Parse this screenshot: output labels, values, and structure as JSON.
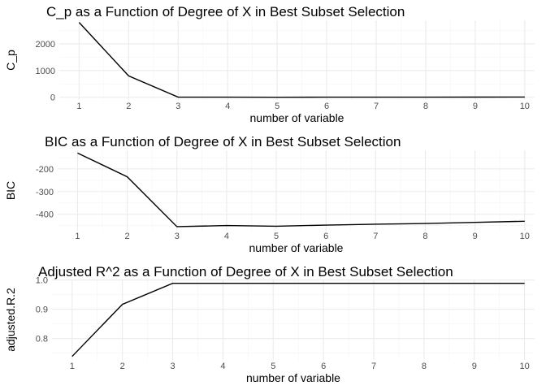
{
  "chart_data": [
    {
      "type": "line",
      "title": "C_p as a Function of Degree of X in Best Subset Selection",
      "xlabel": "number of variable",
      "ylabel": "C_p",
      "x": [
        1,
        2,
        3,
        4,
        5,
        6,
        7,
        8,
        9,
        10
      ],
      "y": [
        2800,
        800,
        5,
        3,
        2,
        3,
        4,
        5,
        6,
        8
      ],
      "xticks": [
        1,
        2,
        3,
        4,
        5,
        6,
        7,
        8,
        9,
        10
      ],
      "yticks": [
        0,
        1000,
        2000
      ],
      "xlim": [
        0.6,
        10.2
      ],
      "ylim": [
        -100,
        2880
      ],
      "grid": true,
      "line_color": "#000000"
    },
    {
      "type": "line",
      "title": "BIC as a Function of Degree of X in Best Subset Selection",
      "xlabel": "number of variable",
      "ylabel": "BIC",
      "x": [
        1,
        2,
        3,
        4,
        5,
        6,
        7,
        8,
        9,
        10
      ],
      "y": [
        -130,
        -235,
        -455,
        -450,
        -453,
        -448,
        -444,
        -441,
        -436,
        -431
      ],
      "xticks": [
        1,
        2,
        3,
        4,
        5,
        6,
        7,
        8,
        9,
        10
      ],
      "yticks": [
        -400,
        -300,
        -200
      ],
      "xlim": [
        0.6,
        10.2
      ],
      "ylim": [
        -473,
        -118
      ],
      "grid": true,
      "line_color": "#000000"
    },
    {
      "type": "line",
      "title": "Adjusted R^2 as a Function of Degree of X in Best Subset Selection",
      "xlabel": "number of variable",
      "ylabel": "adjusted.R.2",
      "x": [
        1,
        2,
        3,
        4,
        5,
        6,
        7,
        8,
        9,
        10
      ],
      "y": [
        0.739,
        0.917,
        0.989,
        0.989,
        0.989,
        0.989,
        0.989,
        0.989,
        0.989,
        0.989
      ],
      "xticks": [
        1,
        2,
        3,
        4,
        5,
        6,
        7,
        8,
        9,
        10
      ],
      "yticks": [
        0.8,
        0.9,
        1.0
      ],
      "ytick_labels": [
        "0.8",
        "0.9",
        "1.0"
      ],
      "xlim": [
        0.6,
        10.2
      ],
      "ylim": [
        0.727,
        1.002
      ],
      "grid": true,
      "line_color": "#000000"
    }
  ]
}
